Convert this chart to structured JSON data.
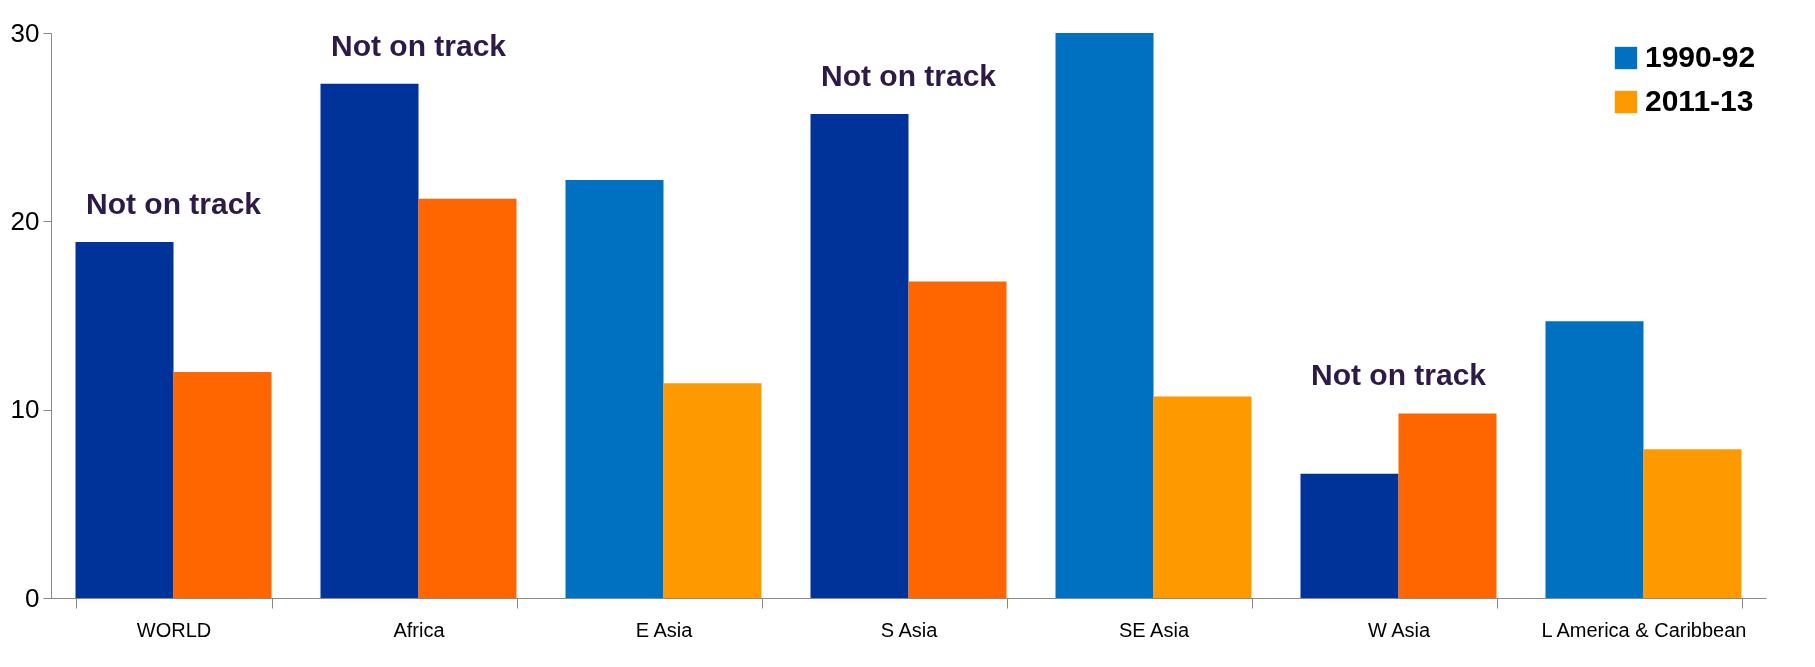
{
  "chart_data": {
    "type": "bar",
    "categories": [
      "WORLD",
      "Africa",
      "E Asia",
      "S Asia",
      "SE Asia",
      "W Asia",
      "L America & Caribbean"
    ],
    "series": [
      {
        "name": "1990-92",
        "color": "#0070c0",
        "colors": [
          "#003399",
          "#003399",
          "#0070c0",
          "#003399",
          "#0070c0",
          "#003399",
          "#0070c0"
        ],
        "values": [
          18.9,
          27.3,
          22.2,
          25.7,
          30.0,
          6.6,
          14.7
        ]
      },
      {
        "name": "2011-13",
        "color": "#ff9900",
        "colors": [
          "#ff6600",
          "#ff6600",
          "#ff9900",
          "#ff6600",
          "#ff9900",
          "#ff6600",
          "#ff9900"
        ],
        "values": [
          12.0,
          21.2,
          11.4,
          16.8,
          10.7,
          9.8,
          7.9
        ]
      }
    ],
    "ylim": [
      0,
      30
    ],
    "yticks": [
      0,
      10,
      20,
      30
    ],
    "grid": false,
    "legend": "top right",
    "annotations": [
      {
        "text": "Not on track",
        "x": "WORLD",
        "y": 18.9
      },
      {
        "text": "Not on track",
        "x": "Africa",
        "y": 27.3
      },
      {
        "text": "Not on track",
        "x": "S Asia",
        "y": 25.7
      },
      {
        "text": "Not on track",
        "x": "W Asia",
        "y": 9.8
      }
    ]
  }
}
